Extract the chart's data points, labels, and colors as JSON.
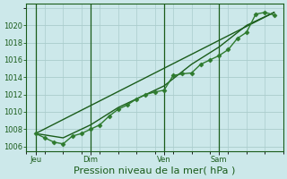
{
  "background_color": "#cce8ea",
  "plot_bg_color": "#cce8ea",
  "grid_color": "#aacccc",
  "line_color_dark": "#1a5c1a",
  "line_color_mid": "#2d7a2d",
  "xlabel": "Pression niveau de la mer( hPa )",
  "ylim": [
    1005.5,
    1022.5
  ],
  "yticks": [
    1006,
    1008,
    1010,
    1012,
    1014,
    1016,
    1018,
    1020
  ],
  "day_labels": [
    "Jeu",
    "Dim",
    "Ven",
    "Sam"
  ],
  "day_positions": [
    0.5,
    3.5,
    7.5,
    10.5
  ],
  "vline_positions": [
    0.5,
    3.5,
    7.5,
    10.5
  ],
  "x_total_min": 0,
  "x_total_max": 14,
  "series1_x": [
    0.5,
    1.0,
    1.5,
    2.0,
    2.5,
    3.0,
    3.5,
    4.0,
    4.5,
    5.0,
    5.5,
    6.0,
    6.5,
    7.0,
    7.5,
    8.0,
    8.5,
    9.0,
    9.5,
    10.0,
    10.5,
    11.0,
    11.5,
    12.0,
    12.5,
    13.0,
    13.5
  ],
  "series1_y": [
    1007.5,
    1007.0,
    1006.5,
    1006.3,
    1007.2,
    1007.5,
    1008.0,
    1008.5,
    1009.5,
    1010.3,
    1010.8,
    1011.5,
    1012.0,
    1012.3,
    1012.5,
    1014.2,
    1014.4,
    1014.5,
    1015.5,
    1016.0,
    1016.5,
    1017.2,
    1018.5,
    1019.2,
    1021.3,
    1021.5,
    1021.2
  ],
  "series2_x": [
    0.5,
    2.0,
    3.5,
    5.0,
    6.5,
    7.5,
    9.0,
    10.5,
    12.0,
    13.5
  ],
  "series2_y": [
    1007.5,
    1007.0,
    1008.5,
    1010.5,
    1012.0,
    1013.0,
    1015.5,
    1017.5,
    1020.0,
    1021.5
  ],
  "trend_x": [
    0.5,
    13.5
  ],
  "trend_y": [
    1007.5,
    1021.5
  ],
  "marker": "D",
  "markersize": 2.5,
  "linewidth": 1.0,
  "tick_fontsize": 6,
  "xlabel_fontsize": 8
}
